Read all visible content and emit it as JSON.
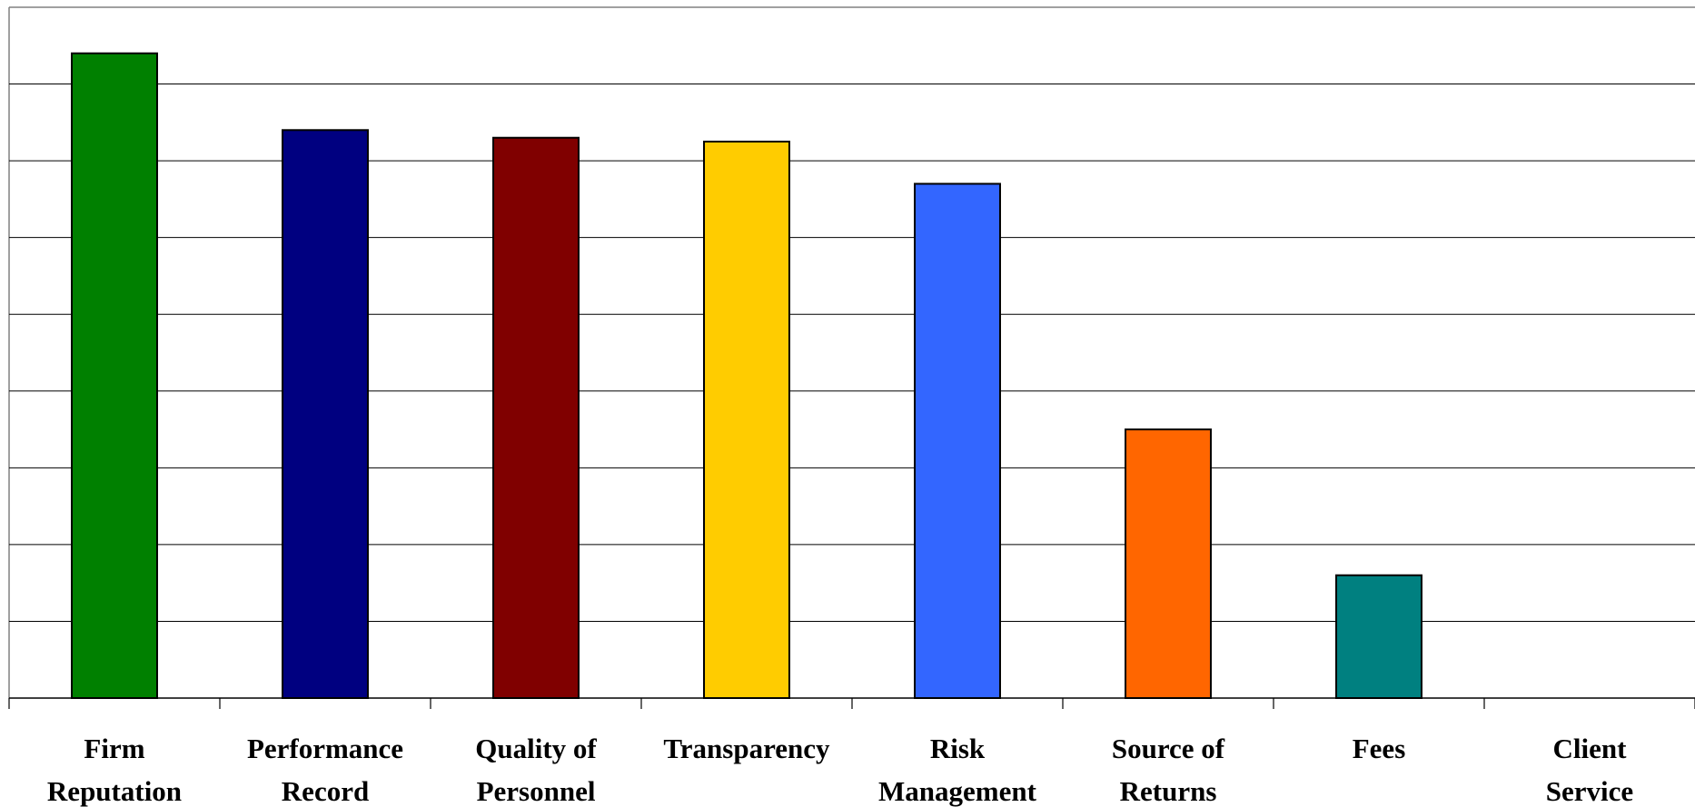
{
  "chart_data": {
    "type": "bar",
    "title": "",
    "xlabel": "",
    "ylabel": "",
    "categories": [
      [
        "Firm",
        "Reputation"
      ],
      [
        "Performance",
        "Record"
      ],
      [
        "Quality of",
        "Personnel"
      ],
      [
        "Transparency"
      ],
      [
        "Risk",
        "Management"
      ],
      [
        "Source of",
        "Returns"
      ],
      [
        "Fees"
      ],
      [
        "Client",
        "Service"
      ]
    ],
    "values": [
      8.4,
      7.4,
      7.3,
      7.25,
      6.7,
      3.5,
      1.6,
      0
    ],
    "colors": [
      "#008000",
      "#000080",
      "#800000",
      "#FFCC00",
      "#3366FF",
      "#FF6600",
      "#008080",
      "#808080"
    ],
    "ylim": [
      0,
      9
    ],
    "ytick_step": 1,
    "grid": true,
    "legend": "none"
  }
}
